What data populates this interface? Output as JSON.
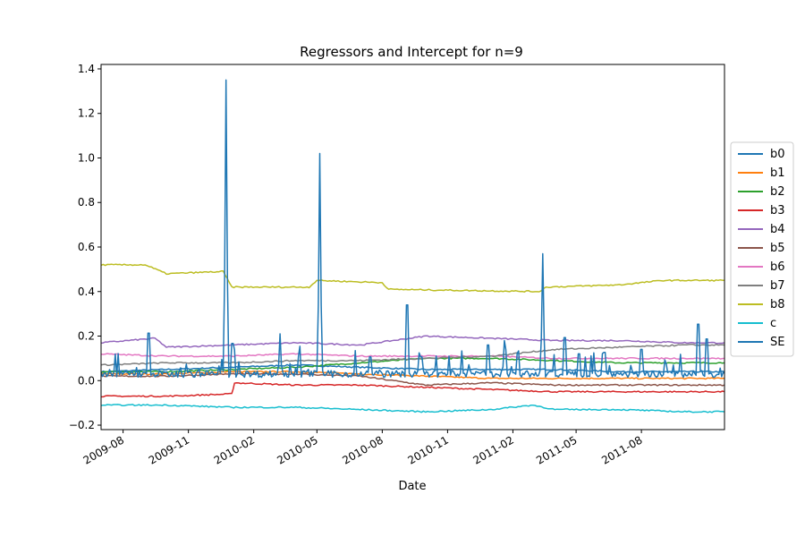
{
  "chart_data": {
    "type": "line",
    "title": "Regressors and Intercept for n=9",
    "xlabel": "Date",
    "ylabel": "",
    "xlim": [
      "2009-07-01",
      "2011-11-26"
    ],
    "ylim": [
      -0.22,
      1.42
    ],
    "yticks": [
      -0.2,
      0.0,
      0.2,
      0.4,
      0.6,
      0.8,
      1.0,
      1.2,
      1.4
    ],
    "ytick_labels": [
      "−0.2",
      "0.0",
      "0.2",
      "0.4",
      "0.6",
      "0.8",
      "1.0",
      "1.2",
      "1.4"
    ],
    "xticks": [
      "2009-08-01",
      "2009-11-01",
      "2010-02-01",
      "2010-05-01",
      "2010-08-01",
      "2010-11-01",
      "2011-02-01",
      "2011-05-01",
      "2011-08-01"
    ],
    "xtick_labels": [
      "2009-08",
      "2009-11",
      "2010-02",
      "2010-05",
      "2010-08",
      "2010-11",
      "2011-02",
      "2011-05",
      "2011-08"
    ],
    "grid": false,
    "legend_position": "center-right, outside plot",
    "series": [
      {
        "name": "b0",
        "color": "#1f77b4",
        "x": [
          "2009-07-01",
          "2009-10-01",
          "2010-01-01",
          "2010-04-01",
          "2010-07-01",
          "2010-10-01",
          "2011-01-01",
          "2011-04-01",
          "2011-07-01",
          "2011-10-01",
          "2011-11-26"
        ],
        "y": [
          0.04,
          0.05,
          0.06,
          0.07,
          0.06,
          0.05,
          0.05,
          0.05,
          0.04,
          0.04,
          0.04
        ]
      },
      {
        "name": "b1",
        "color": "#ff7f0e",
        "x": [
          "2009-07-01",
          "2009-10-01",
          "2010-01-01",
          "2010-04-01",
          "2010-07-01",
          "2010-10-01",
          "2011-01-01",
          "2011-04-01",
          "2011-07-01",
          "2011-10-01",
          "2011-11-26"
        ],
        "y": [
          0.03,
          0.03,
          0.04,
          0.04,
          0.03,
          0.02,
          0.01,
          0.01,
          0.01,
          0.01,
          0.01
        ]
      },
      {
        "name": "b2",
        "color": "#2ca02c",
        "x": [
          "2009-07-01",
          "2009-10-01",
          "2010-01-01",
          "2010-04-01",
          "2010-07-01",
          "2010-10-01",
          "2011-01-01",
          "2011-04-01",
          "2011-07-01",
          "2011-10-01",
          "2011-11-26"
        ],
        "y": [
          0.04,
          0.04,
          0.05,
          0.06,
          0.08,
          0.1,
          0.1,
          0.09,
          0.08,
          0.08,
          0.08
        ]
      },
      {
        "name": "b3",
        "color": "#d62728",
        "x": [
          "2009-07-01",
          "2009-10-01",
          "2010-01-01",
          "2010-01-05",
          "2010-04-01",
          "2010-07-01",
          "2010-10-01",
          "2011-01-01",
          "2011-04-01",
          "2011-07-01",
          "2011-10-01",
          "2011-11-26"
        ],
        "y": [
          -0.07,
          -0.07,
          -0.06,
          -0.01,
          -0.02,
          -0.02,
          -0.03,
          -0.04,
          -0.05,
          -0.05,
          -0.05,
          -0.05
        ]
      },
      {
        "name": "b4",
        "color": "#9467bd",
        "x": [
          "2009-07-01",
          "2009-09-15",
          "2009-10-01",
          "2010-01-01",
          "2010-04-01",
          "2010-07-01",
          "2010-10-01",
          "2011-01-01",
          "2011-04-01",
          "2011-07-01",
          "2011-10-01",
          "2011-11-26"
        ],
        "y": [
          0.17,
          0.19,
          0.15,
          0.16,
          0.17,
          0.16,
          0.2,
          0.19,
          0.18,
          0.18,
          0.17,
          0.17
        ]
      },
      {
        "name": "b5",
        "color": "#8c564b",
        "x": [
          "2009-07-01",
          "2009-10-01",
          "2010-01-01",
          "2010-04-01",
          "2010-07-01",
          "2010-10-01",
          "2011-01-01",
          "2011-04-01",
          "2011-07-01",
          "2011-10-01",
          "2011-11-26"
        ],
        "y": [
          0.02,
          0.02,
          0.03,
          0.03,
          0.02,
          -0.02,
          -0.01,
          -0.02,
          -0.02,
          -0.02,
          -0.02
        ]
      },
      {
        "name": "b6",
        "color": "#e377c2",
        "x": [
          "2009-07-01",
          "2009-10-01",
          "2010-01-01",
          "2010-04-01",
          "2010-07-01",
          "2010-10-01",
          "2011-01-01",
          "2011-04-01",
          "2011-07-01",
          "2011-10-01",
          "2011-11-26"
        ],
        "y": [
          0.12,
          0.11,
          0.11,
          0.12,
          0.11,
          0.11,
          0.11,
          0.1,
          0.1,
          0.1,
          0.1
        ]
      },
      {
        "name": "b7",
        "color": "#7f7f7f",
        "x": [
          "2009-07-01",
          "2009-10-01",
          "2010-01-01",
          "2010-04-01",
          "2010-07-01",
          "2010-10-01",
          "2011-01-01",
          "2011-04-01",
          "2011-07-01",
          "2011-10-01",
          "2011-11-26"
        ],
        "y": [
          0.07,
          0.08,
          0.08,
          0.09,
          0.09,
          0.1,
          0.11,
          0.14,
          0.15,
          0.16,
          0.16
        ]
      },
      {
        "name": "b8",
        "color": "#bcbd22",
        "x": [
          "2009-07-01",
          "2009-09-01",
          "2009-10-01",
          "2009-12-20",
          "2010-01-01",
          "2010-04-20",
          "2010-05-01",
          "2010-08-01",
          "2010-08-10",
          "2011-03-10",
          "2011-03-20",
          "2011-07-01",
          "2011-09-01",
          "2011-11-26"
        ],
        "y": [
          0.52,
          0.52,
          0.48,
          0.49,
          0.42,
          0.42,
          0.45,
          0.44,
          0.41,
          0.4,
          0.42,
          0.43,
          0.45,
          0.45
        ]
      },
      {
        "name": "c",
        "color": "#17becf",
        "x": [
          "2009-07-01",
          "2009-10-01",
          "2010-01-01",
          "2010-04-01",
          "2010-07-01",
          "2010-10-01",
          "2011-01-01",
          "2011-03-01",
          "2011-04-01",
          "2011-07-01",
          "2011-10-01",
          "2011-11-26"
        ],
        "y": [
          -0.11,
          -0.11,
          -0.12,
          -0.12,
          -0.13,
          -0.14,
          -0.13,
          -0.11,
          -0.13,
          -0.13,
          -0.14,
          -0.14
        ]
      },
      {
        "name": "SE",
        "color": "#1f77b4",
        "baseline": 0.03,
        "x": [
          "2009-09-06",
          "2009-12-24",
          "2010-01-02",
          "2010-03-10",
          "2010-05-05",
          "2010-07-15",
          "2010-09-05",
          "2010-09-25",
          "2010-12-28",
          "2011-01-20",
          "2011-03-15",
          "2011-04-15",
          "2011-05-05",
          "2011-06-10",
          "2011-08-01",
          "2011-10-20",
          "2011-11-01"
        ],
        "y": [
          0.32,
          1.35,
          0.25,
          0.21,
          1.02,
          0.16,
          0.51,
          0.16,
          0.24,
          0.18,
          0.57,
          0.29,
          0.18,
          0.19,
          0.21,
          0.38,
          0.28
        ]
      }
    ]
  }
}
